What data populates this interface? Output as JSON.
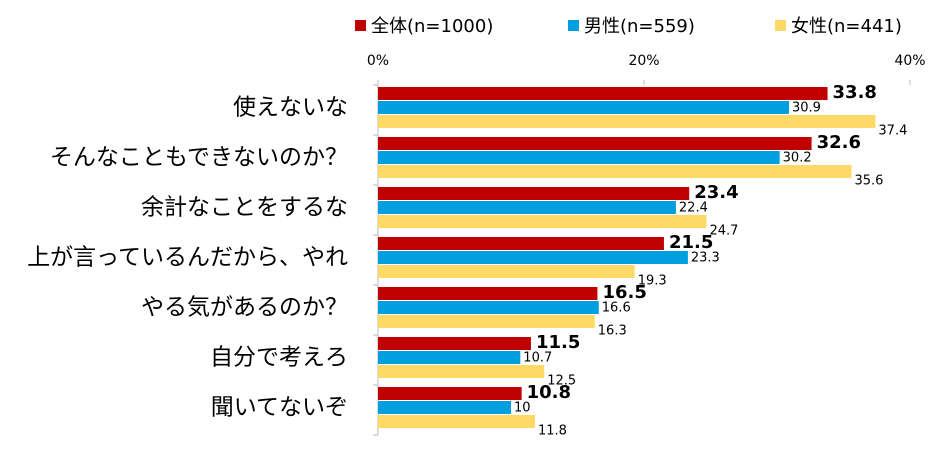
{
  "chart_data": {
    "type": "hbar",
    "categories": [
      "使えないな",
      "そんなこともできないのか？",
      "余計なことをするな",
      "上が言っているんだから、やれ",
      "やる気があるのか？",
      "自分で考えろ",
      "聞いてないぞ"
    ],
    "series": [
      {
        "name": "全体(n=1000)",
        "color": "#c00000",
        "values": [
          33.8,
          32.6,
          23.4,
          21.5,
          16.5,
          11.5,
          10.8
        ]
      },
      {
        "name": "男性(n=559)",
        "color": "#00a0e0",
        "values": [
          30.9,
          30.2,
          22.4,
          23.3,
          16.6,
          10.7,
          10.0
        ]
      },
      {
        "name": "女性(n=441)",
        "color": "#ffd966",
        "values": [
          37.4,
          35.6,
          24.7,
          19.3,
          16.3,
          12.5,
          11.8
        ]
      }
    ],
    "xlim": [
      0,
      40
    ],
    "xticks": [
      {
        "value": 0,
        "label": "0%"
      },
      {
        "value": 20,
        "label": "20%"
      },
      {
        "value": 40,
        "label": "40%"
      }
    ]
  }
}
